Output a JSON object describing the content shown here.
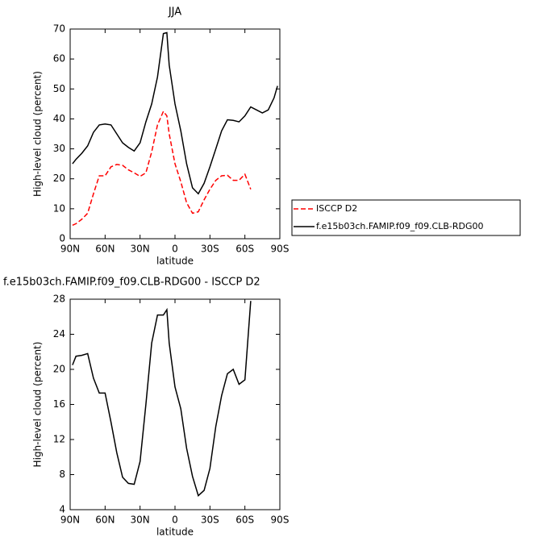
{
  "chart_data": [
    {
      "type": "line",
      "title": "JJA",
      "xlabel": "latitude",
      "ylabel": "High-level cloud (percent)",
      "x": [
        88,
        85,
        80,
        75,
        70,
        65,
        60,
        55,
        50,
        45,
        40,
        35,
        30,
        25,
        20,
        15,
        10,
        7,
        5,
        0,
        -5,
        -10,
        -15,
        -20,
        -25,
        -30,
        -35,
        -40,
        -45,
        -50,
        -55,
        -60,
        -65,
        -70,
        -75,
        -80,
        -85,
        -88
      ],
      "series": [
        {
          "name": "ISCCP D2",
          "color": "#ff0000",
          "linestyle": "dashed",
          "values": [
            4.5,
            5,
            6.5,
            8.5,
            15,
            21,
            21,
            24,
            24.8,
            24.5,
            23,
            22,
            20.8,
            22,
            29,
            38,
            42.5,
            41,
            35,
            25,
            19,
            12,
            8.5,
            9,
            13,
            16.5,
            19.5,
            21,
            21.2,
            19.5,
            19.5,
            21.5,
            16.5,
            null,
            null,
            null,
            null,
            null
          ]
        },
        {
          "name": "f.e15b03ch.FAMIP.f09_f09.CLB-RDG00",
          "color": "#000000",
          "linestyle": "solid",
          "values": [
            25,
            26.5,
            28.5,
            31,
            35.5,
            38,
            38.3,
            38,
            35,
            32,
            30.5,
            29.3,
            32,
            39,
            45,
            54,
            68.5,
            68.8,
            58,
            45,
            36,
            25,
            17,
            15,
            18.5,
            24,
            30,
            36,
            39.7,
            39.5,
            39,
            41,
            44,
            43,
            42,
            43,
            47,
            51
          ]
        }
      ],
      "xlim": [
        90,
        -90
      ],
      "xticks": [
        {
          "value": 90,
          "label": "90N"
        },
        {
          "value": 60,
          "label": "60N"
        },
        {
          "value": 30,
          "label": "30N"
        },
        0,
        {
          "value": -30,
          "label": "30S"
        },
        {
          "value": -60,
          "label": "60S"
        },
        {
          "value": -90,
          "label": "90S"
        }
      ],
      "ylim": [
        0,
        70
      ],
      "yticks": [
        0,
        10,
        20,
        30,
        40,
        50,
        60,
        70
      ],
      "legend": "right"
    },
    {
      "type": "line",
      "title": "f.e15b03ch.FAMIP.f09_f09.CLB-RDG00 - ISCCP D2",
      "xlabel": "latitude",
      "ylabel": "High-level cloud (percent)",
      "x": [
        88,
        85,
        80,
        75,
        70,
        65,
        60,
        55,
        50,
        45,
        40,
        35,
        30,
        25,
        20,
        15,
        10,
        7,
        5,
        0,
        -5,
        -10,
        -15,
        -20,
        -25,
        -30,
        -35,
        -40,
        -45,
        -50,
        -55,
        -60,
        -65
      ],
      "series": [
        {
          "color": "#000000",
          "linestyle": "solid",
          "values": [
            20.5,
            21.5,
            21.6,
            21.8,
            19,
            17.3,
            17.3,
            14,
            10.5,
            7.7,
            7,
            6.9,
            9.5,
            16,
            23,
            26.2,
            26.2,
            26.8,
            23,
            18,
            15.5,
            11,
            7.8,
            5.6,
            6.2,
            8.7,
            13.5,
            17,
            19.5,
            20,
            18.3,
            18.8,
            27.8
          ]
        }
      ],
      "xlim": [
        90,
        -90
      ],
      "xticks": [
        {
          "value": 90,
          "label": "90N"
        },
        {
          "value": 60,
          "label": "60N"
        },
        {
          "value": 30,
          "label": "30N"
        },
        0,
        {
          "value": -30,
          "label": "30S"
        },
        {
          "value": -60,
          "label": "60S"
        },
        {
          "value": -90,
          "label": "90S"
        }
      ],
      "ylim": [
        4,
        28
      ],
      "yticks": [
        4,
        8,
        12,
        16,
        20,
        24,
        28
      ]
    }
  ]
}
